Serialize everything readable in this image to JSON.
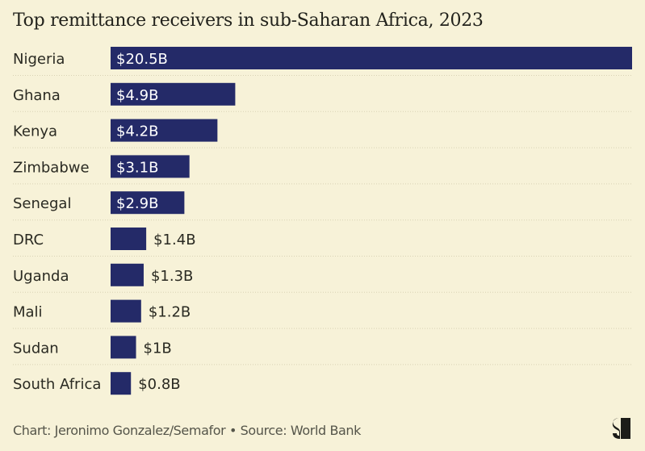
{
  "chart_data": {
    "type": "bar",
    "orientation": "horizontal",
    "title": "Top remittance receivers in sub-Saharan Africa, 2023",
    "categories": [
      "Nigeria",
      "Ghana",
      "Kenya",
      "Zimbabwe",
      "Senegal",
      "DRC",
      "Uganda",
      "Mali",
      "Sudan",
      "South Africa"
    ],
    "values": [
      20.5,
      4.9,
      4.2,
      3.1,
      2.9,
      1.4,
      1.3,
      1.2,
      1.0,
      0.8
    ],
    "value_labels": [
      "$20.5B",
      "$4.9B",
      "$4.2B",
      "$3.1B",
      "$2.9B",
      "$1.4B",
      "$1.3B",
      "$1.2B",
      "$1B",
      "$0.8B"
    ],
    "unit": "USD billions",
    "xlabel": "",
    "ylabel": "",
    "xlim": [
      0,
      20.5
    ],
    "grid": false,
    "legend": "none",
    "bar_color": "#242a68",
    "separator_color": "#d8d2b4"
  },
  "footer": {
    "credit": "Chart: Jeronimo Gonzalez/Semafor • Source: World Bank"
  },
  "logo": {
    "icon": "semafor-logo-icon"
  },
  "colors": {
    "background": "#f7f2d8",
    "text": "#2a2a22"
  }
}
